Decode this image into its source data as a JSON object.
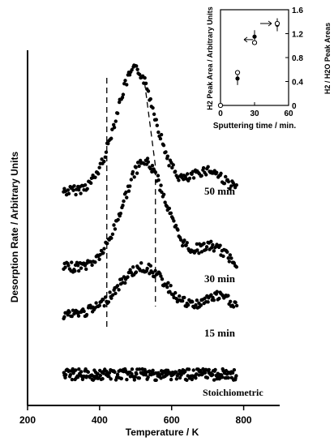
{
  "chart_data": [
    {
      "type": "scatter",
      "title": "",
      "xlabel": "Temperature / K",
      "ylabel": "Desorption Rate / Arbitrary Units",
      "xlim": [
        200,
        900
      ],
      "xticks": [
        "200",
        "400",
        "600",
        "800"
      ],
      "series": [
        {
          "name": "50 min",
          "x_range": [
            300,
            780
          ],
          "peak_T": 500
        },
        {
          "name": "30 min",
          "x_range": [
            300,
            780
          ],
          "peak_T": 520
        },
        {
          "name": "15 min",
          "x_range": [
            300,
            780
          ],
          "peak_T": 520
        },
        {
          "name": "Stoichiometric",
          "x_range": [
            300,
            780
          ],
          "peak_T": null
        }
      ],
      "reference_lines_T": [
        420,
        555
      ]
    },
    {
      "type": "scatter",
      "title": "",
      "xlabel": "Sputtering time / min.",
      "ylabel_left": "H2 Peak Area / Arbitrary Units",
      "ylabel_right": "H2 / H2O Peak Areas",
      "xlim": [
        0,
        60
      ],
      "ylim": [
        0,
        1.6
      ],
      "xticks": [
        "0",
        "30",
        "60"
      ],
      "yticks": [
        "0",
        "0.4",
        "0.8",
        "1.2",
        "1.6"
      ],
      "series": [
        {
          "marker": "filled",
          "points": [
            [
              0,
              0.0
            ],
            [
              15,
              0.45
            ],
            [
              30,
              1.15
            ],
            [
              50,
              1.35
            ]
          ]
        },
        {
          "marker": "open",
          "points": [
            [
              0,
              0.0
            ],
            [
              15,
              0.55
            ],
            [
              30,
              1.05
            ],
            [
              50,
              1.37
            ]
          ]
        }
      ]
    }
  ]
}
